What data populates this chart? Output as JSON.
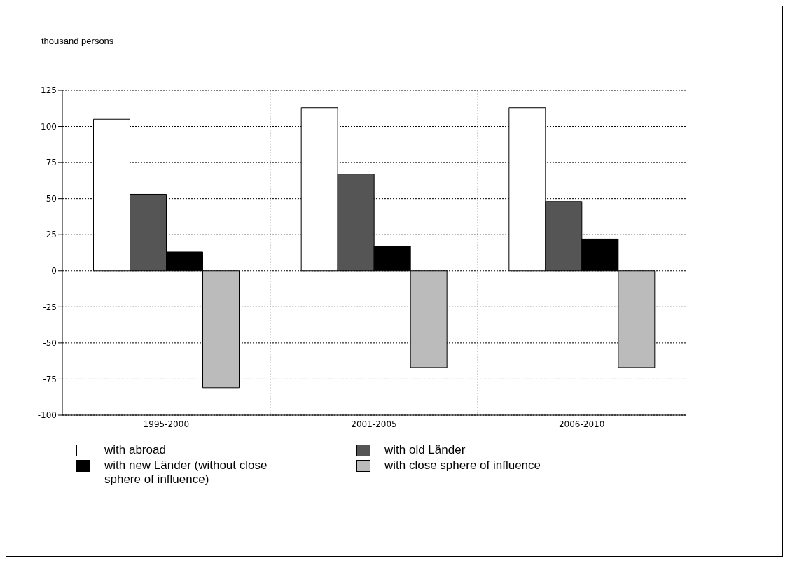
{
  "chart_data": {
    "type": "bar",
    "ylabel": "thousand persons",
    "categories": [
      "1995-2000",
      "2001-2005",
      "2006-2010"
    ],
    "series": [
      {
        "name": "with abroad",
        "color": "#ffffff",
        "values": [
          105,
          113,
          113
        ]
      },
      {
        "name": "with old Länder",
        "color": "#555555",
        "values": [
          53,
          67,
          48
        ]
      },
      {
        "name": "with new Länder (without close sphere of influence)",
        "color": "#000000",
        "values": [
          13,
          17,
          22
        ]
      },
      {
        "name": "with close sphere of influence",
        "color": "#bbbbbb",
        "values": [
          -81,
          -67,
          -67
        ]
      }
    ],
    "ylim": [
      -100,
      125
    ],
    "yticks": [
      -100,
      -75,
      -50,
      -25,
      0,
      25,
      50,
      75,
      100,
      125
    ],
    "grid": true,
    "legend": "bottom"
  }
}
